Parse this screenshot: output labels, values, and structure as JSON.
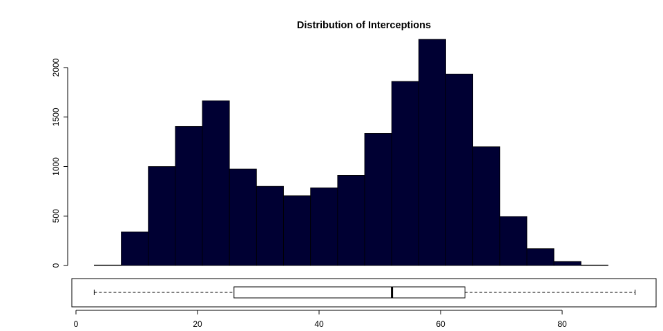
{
  "chart_data": {
    "type": "bar",
    "title": "Distribution of Interceptions",
    "xlabel": "",
    "ylabel": "",
    "histogram": {
      "bin_edges": [
        3.0,
        7.45,
        11.9,
        16.35,
        20.8,
        25.25,
        29.7,
        34.15,
        38.6,
        43.05,
        47.5,
        51.95,
        56.4,
        60.85,
        65.3,
        69.75,
        74.2,
        78.65,
        83.1,
        87.55,
        92.0
      ],
      "counts": [
        5,
        340,
        1000,
        1405,
        1665,
        975,
        800,
        705,
        785,
        910,
        1335,
        1860,
        2285,
        1935,
        1200,
        495,
        170,
        40,
        5,
        0
      ],
      "fill_color": "#000033",
      "ylim": [
        0,
        2300
      ],
      "yticks": [
        0,
        500,
        1000,
        1500,
        2000
      ]
    },
    "boxplot": {
      "min": 3,
      "q1": 26,
      "median": 52,
      "q3": 64,
      "max": 92
    },
    "x_axis": {
      "xlim": [
        0,
        95
      ],
      "xticks": [
        0,
        20,
        40,
        60,
        80
      ]
    }
  }
}
